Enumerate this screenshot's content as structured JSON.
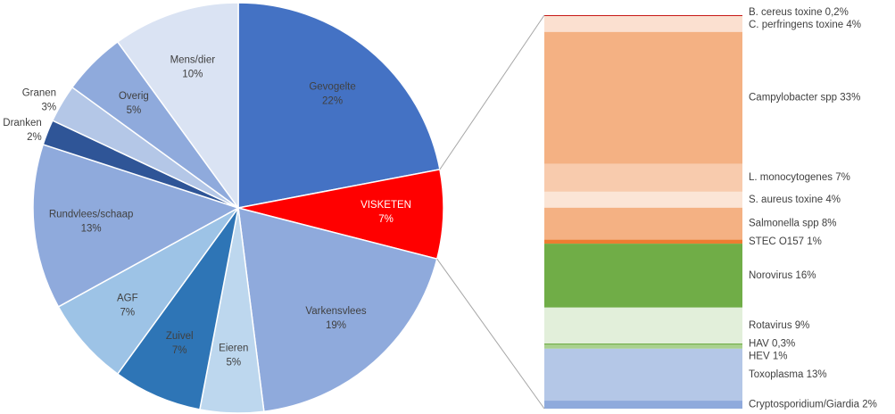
{
  "chart_data": [
    {
      "type": "pie",
      "categories": [
        "Gevogelte",
        "VISKETEN",
        "Varkensvlees",
        "Eieren",
        "Zuivel",
        "AGF",
        "Rundvlees/schaap",
        "Dranken",
        "Granen",
        "Overig",
        "Mens/dier"
      ],
      "values": [
        22,
        7,
        19,
        5,
        7,
        7,
        13,
        2,
        3,
        5,
        10
      ],
      "value_labels": [
        "22%",
        "7%",
        "19%",
        "5%",
        "7%",
        "7%",
        "13%",
        "2%",
        "3%",
        "5%",
        "10%"
      ],
      "colors": [
        "#4472c4",
        "#ff0000",
        "#8faadc",
        "#bdd7ee",
        "#2e75b6",
        "#9dc3e6",
        "#8faadc",
        "#2f5597",
        "#b4c7e7",
        "#8faadc",
        "#dae3f3"
      ]
    },
    {
      "type": "stacked-bar",
      "categories": [
        "B. cereus toxine",
        "C. perfringens toxine",
        "Campylobacter spp",
        "L. monocytogenes",
        "S. aureus toxine",
        "Salmonella spp",
        "STEC O157",
        "Norovirus",
        "Rotavirus",
        "HAV",
        "HEV",
        "Toxoplasma",
        "Cryptosporidium/Giardia"
      ],
      "values": [
        0.2,
        4,
        33,
        7,
        4,
        8,
        1,
        16,
        9,
        0.3,
        1,
        13,
        2
      ],
      "value_labels": [
        "0,2%",
        "4%",
        "33%",
        "7%",
        "4%",
        "8%",
        "1%",
        "16%",
        "9%",
        "0,3%",
        "1%",
        "13%",
        "2%"
      ],
      "colors": [
        "#c00000",
        "#fbe0d0",
        "#f4b183",
        "#f8cbad",
        "#fbe5d6",
        "#f4b183",
        "#ed7d31",
        "#70ad47",
        "#e2efda",
        "#70ad47",
        "#a9d18e",
        "#b4c7e7",
        "#8faadc"
      ]
    }
  ]
}
